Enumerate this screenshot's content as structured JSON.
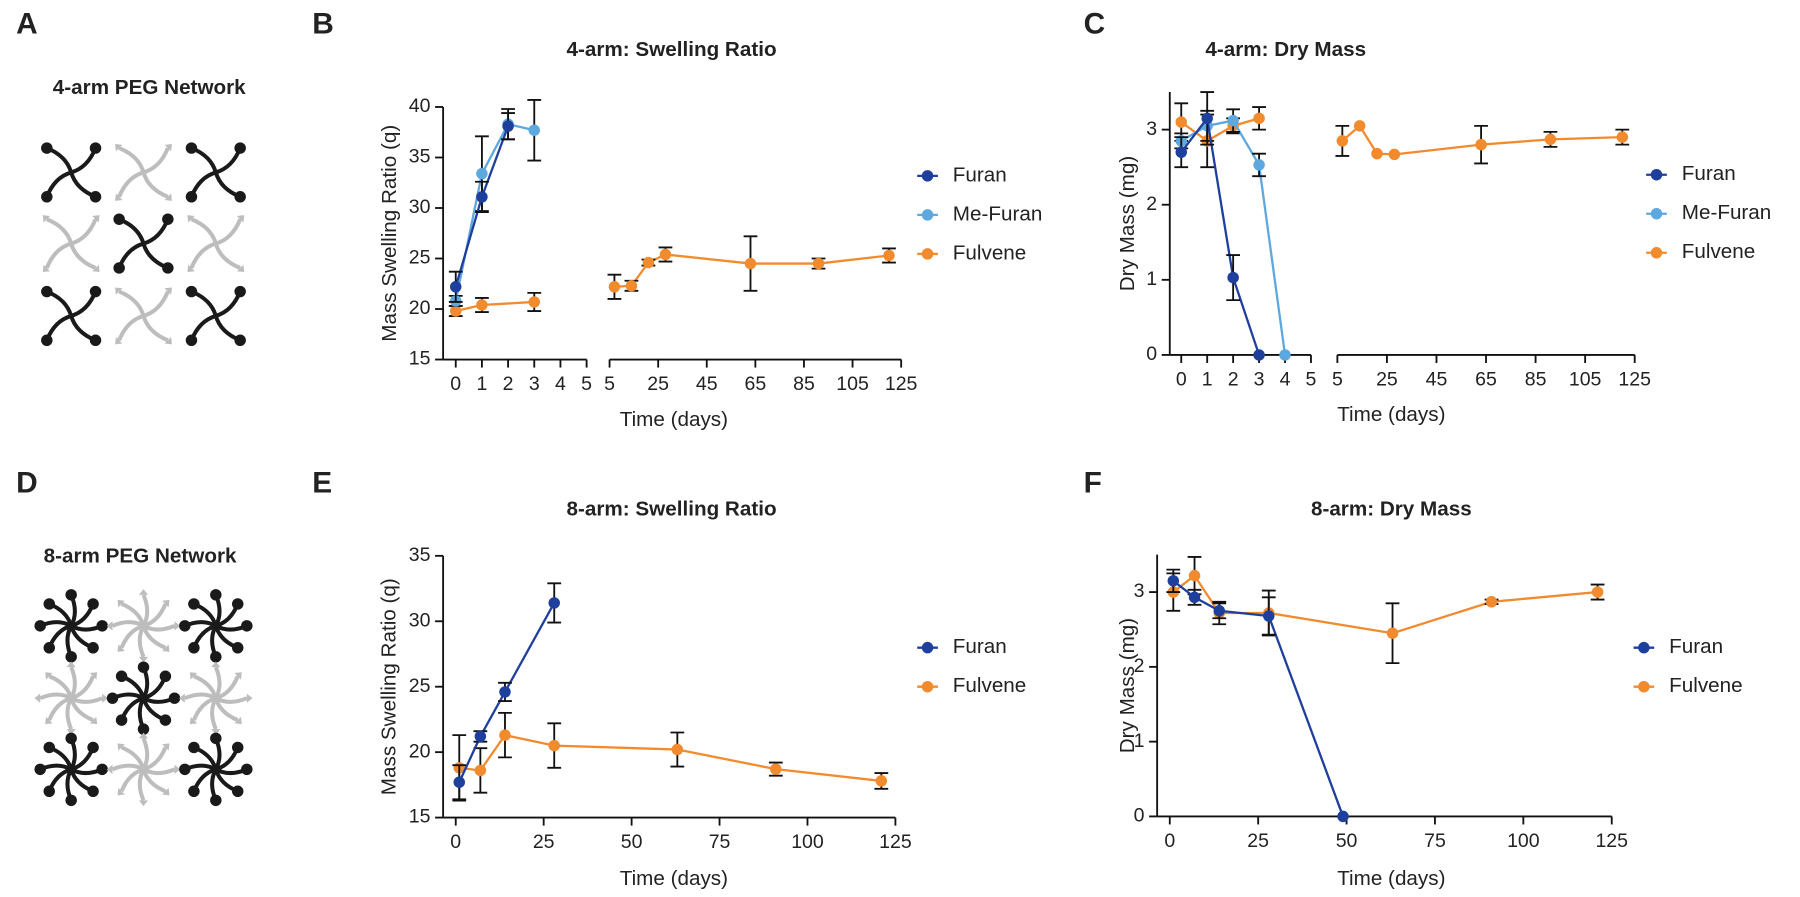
{
  "diagrams": [
    {
      "panel_label": "A",
      "title": "4-arm PEG Network"
    },
    {
      "panel_label": "D",
      "title": "8-arm PEG Network"
    }
  ],
  "chart_data": [
    {
      "type": "line",
      "panel_label": "B",
      "title": "4-arm: Swelling Ratio",
      "xlabel": "Time (days)",
      "ylabel": "Mass Swelling Ratio (q)",
      "x_segments": [
        {
          "xlim": [
            0,
            5
          ],
          "xticks": [
            0,
            1,
            2,
            3,
            4,
            5
          ]
        },
        {
          "xlim": [
            5,
            125
          ],
          "xticks": [
            5,
            25,
            45,
            65,
            85,
            105,
            125
          ]
        }
      ],
      "ylim": [
        15,
        40
      ],
      "yticks": [
        15,
        20,
        25,
        30,
        35,
        40
      ],
      "legend": "right",
      "series": [
        {
          "name": "Furan",
          "color": "#1f3f9c",
          "x": [
            0,
            1,
            2
          ],
          "values": [
            22.2,
            31.1,
            38.1
          ],
          "errors": [
            1.5,
            1.5,
            1.3
          ]
        },
        {
          "name": "Me-Furan",
          "color": "#5ea8e0",
          "x": [
            0,
            1,
            2,
            3
          ],
          "values": [
            20.8,
            33.4,
            38.3,
            37.7
          ],
          "errors": [
            0.5,
            3.7,
            1.5,
            3.0
          ]
        },
        {
          "name": "Fulvene",
          "color": "#f28a2e",
          "x": [
            0,
            1,
            3,
            7,
            14,
            21,
            28,
            63,
            91,
            120
          ],
          "values": [
            19.8,
            20.4,
            20.7,
            22.2,
            22.3,
            24.6,
            25.4,
            24.5,
            24.5,
            25.3
          ],
          "errors": [
            0.5,
            0.7,
            0.9,
            1.2,
            0.5,
            0.3,
            0.7,
            2.7,
            0.5,
            0.7
          ]
        }
      ]
    },
    {
      "type": "line",
      "panel_label": "C",
      "title": "4-arm: Dry Mass",
      "xlabel": "Time (days)",
      "ylabel": "Dry Mass (mg)",
      "x_segments": [
        {
          "xlim": [
            0,
            5
          ],
          "xticks": [
            0,
            1,
            2,
            3,
            4,
            5
          ]
        },
        {
          "xlim": [
            5,
            125
          ],
          "xticks": [
            5,
            25,
            45,
            65,
            85,
            105,
            125
          ]
        }
      ],
      "ylim": [
        0,
        3.5
      ],
      "yticks": [
        0,
        1,
        2,
        3
      ],
      "legend": "right",
      "series": [
        {
          "name": "Furan",
          "color": "#1f3f9c",
          "x": [
            0,
            1,
            2,
            3
          ],
          "values": [
            2.7,
            3.15,
            1.03,
            0
          ],
          "errors": [
            0.2,
            0.35,
            0.3,
            0
          ]
        },
        {
          "name": "Me-Furan",
          "color": "#5ea8e0",
          "x": [
            0,
            1,
            2,
            3,
            4
          ],
          "values": [
            2.85,
            3.05,
            3.12,
            2.53,
            0
          ],
          "errors": [
            0.1,
            0.2,
            0.15,
            0.15,
            0
          ]
        },
        {
          "name": "Fulvene",
          "color": "#f28a2e",
          "x": [
            0,
            1,
            2,
            3,
            7,
            14,
            21,
            28,
            63,
            91,
            120
          ],
          "values": [
            3.1,
            2.85,
            3.05,
            3.15,
            2.85,
            3.05,
            2.68,
            2.67,
            2.8,
            2.87,
            2.9
          ],
          "errors": [
            0.25,
            0.35,
            0.1,
            0.15,
            0.2,
            0,
            0,
            0,
            0.25,
            0.1,
            0.1
          ]
        }
      ]
    },
    {
      "type": "line",
      "panel_label": "E",
      "title": "8-arm: Swelling Ratio",
      "xlabel": "Time (days)",
      "ylabel": "Mass Swelling Ratio (q)",
      "xlim": [
        0,
        125
      ],
      "xticks": [
        0,
        25,
        50,
        75,
        100,
        125
      ],
      "ylim": [
        15,
        35
      ],
      "yticks": [
        15,
        20,
        25,
        30,
        35
      ],
      "legend": "right",
      "series": [
        {
          "name": "Furan",
          "color": "#1f3f9c",
          "x": [
            1,
            7,
            14,
            28
          ],
          "values": [
            17.7,
            21.2,
            24.6,
            31.4
          ],
          "errors": [
            1.3,
            0.4,
            0.7,
            1.5
          ]
        },
        {
          "name": "Fulvene",
          "color": "#f28a2e",
          "x": [
            1,
            7,
            14,
            28,
            63,
            91,
            121
          ],
          "values": [
            18.8,
            18.6,
            21.3,
            20.5,
            20.2,
            18.7,
            17.8
          ],
          "errors": [
            2.5,
            1.7,
            1.7,
            1.7,
            1.3,
            0.5,
            0.6
          ]
        }
      ]
    },
    {
      "type": "line",
      "panel_label": "F",
      "title": "8-arm: Dry Mass",
      "xlabel": "Time (days)",
      "ylabel": "Dry Mass (mg)",
      "xlim": [
        0,
        125
      ],
      "xticks": [
        0,
        25,
        50,
        75,
        100,
        125
      ],
      "ylim": [
        0,
        3.5
      ],
      "yticks": [
        0,
        1,
        2,
        3
      ],
      "legend": "right",
      "series": [
        {
          "name": "Furan",
          "color": "#1f3f9c",
          "x": [
            1,
            7,
            14,
            28,
            49
          ],
          "values": [
            3.15,
            2.93,
            2.75,
            2.68,
            0
          ],
          "errors": [
            0.15,
            0.1,
            0.1,
            0.25,
            0
          ]
        },
        {
          "name": "Fulvene",
          "color": "#f28a2e",
          "x": [
            1,
            7,
            14,
            28,
            63,
            91,
            121
          ],
          "values": [
            3.0,
            3.22,
            2.72,
            2.72,
            2.45,
            2.87,
            3.0
          ],
          "errors": [
            0.25,
            0.25,
            0.15,
            0.3,
            0.4,
            0.03,
            0.1
          ]
        }
      ]
    }
  ]
}
